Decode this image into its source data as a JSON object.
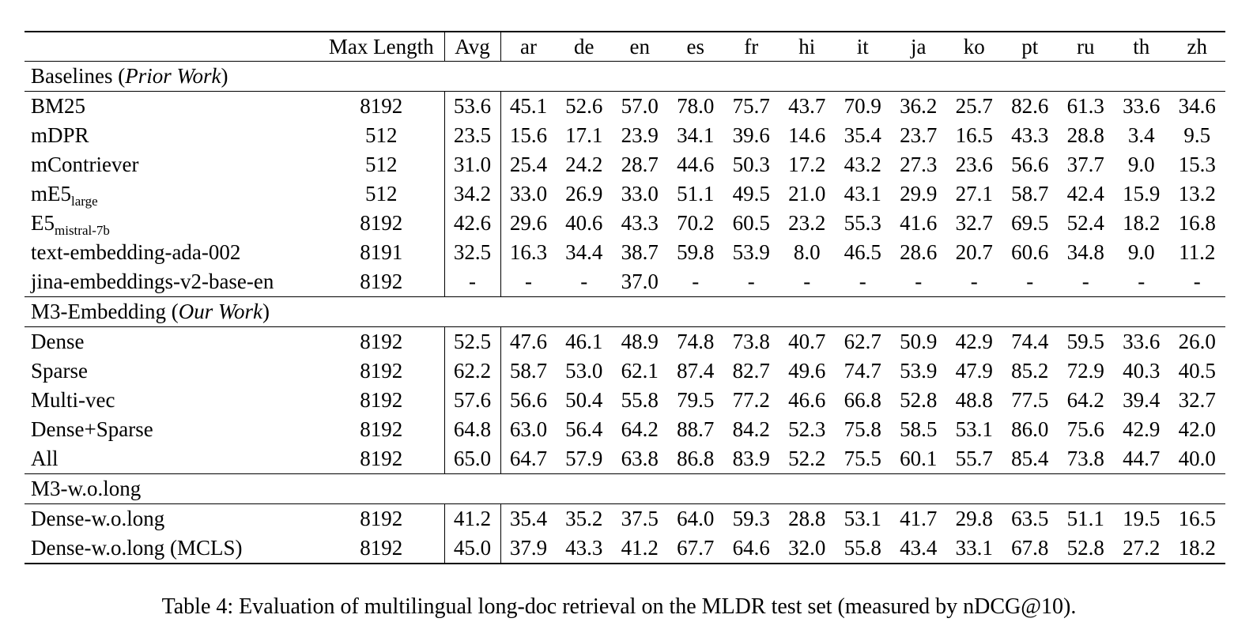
{
  "table": {
    "header": {
      "name": "",
      "max_length": "Max Length",
      "avg": "Avg",
      "langs": [
        "ar",
        "de",
        "en",
        "es",
        "fr",
        "hi",
        "it",
        "ja",
        "ko",
        "pt",
        "ru",
        "th",
        "zh"
      ]
    },
    "sections": [
      {
        "title": "Baselines (",
        "title_italic": "Prior Work",
        "title_end": ")",
        "rows": [
          {
            "name": "BM25",
            "sub": "",
            "max_length": "8192",
            "avg": "53.6",
            "values": [
              "45.1",
              "52.6",
              "57.0",
              "78.0",
              "75.7",
              "43.7",
              "70.9",
              "36.2",
              "25.7",
              "82.6",
              "61.3",
              "33.6",
              "34.6"
            ],
            "bold": []
          },
          {
            "name": "mDPR",
            "sub": "",
            "max_length": "512",
            "avg": "23.5",
            "values": [
              "15.6",
              "17.1",
              "23.9",
              "34.1",
              "39.6",
              "14.6",
              "35.4",
              "23.7",
              "16.5",
              "43.3",
              "28.8",
              "3.4",
              "9.5"
            ],
            "bold": []
          },
          {
            "name": "mContriever",
            "sub": "",
            "max_length": "512",
            "avg": "31.0",
            "values": [
              "25.4",
              "24.2",
              "28.7",
              "44.6",
              "50.3",
              "17.2",
              "43.2",
              "27.3",
              "23.6",
              "56.6",
              "37.7",
              "9.0",
              "15.3"
            ],
            "bold": []
          },
          {
            "name": "mE5",
            "sub": "large",
            "max_length": "512",
            "avg": "34.2",
            "values": [
              "33.0",
              "26.9",
              "33.0",
              "51.1",
              "49.5",
              "21.0",
              "43.1",
              "29.9",
              "27.1",
              "58.7",
              "42.4",
              "15.9",
              "13.2"
            ],
            "bold": []
          },
          {
            "name": "E5",
            "sub": "mistral-7b",
            "max_length": "8192",
            "avg": "42.6",
            "values": [
              "29.6",
              "40.6",
              "43.3",
              "70.2",
              "60.5",
              "23.2",
              "55.3",
              "41.6",
              "32.7",
              "69.5",
              "52.4",
              "18.2",
              "16.8"
            ],
            "bold": []
          },
          {
            "name": "text-embedding-ada-002",
            "sub": "",
            "max_length": "8191",
            "avg": "32.5",
            "values": [
              "16.3",
              "34.4",
              "38.7",
              "59.8",
              "53.9",
              "8.0",
              "46.5",
              "28.6",
              "20.7",
              "60.6",
              "34.8",
              "9.0",
              "11.2"
            ],
            "bold": []
          },
          {
            "name": "jina-embeddings-v2-base-en",
            "sub": "",
            "max_length": "8192",
            "avg": "-",
            "values": [
              "-",
              "-",
              "37.0",
              "-",
              "-",
              "-",
              "-",
              "-",
              "-",
              "-",
              "-",
              "-",
              "-"
            ],
            "bold": []
          }
        ]
      },
      {
        "title": "M3-Embedding (",
        "title_italic": "Our Work",
        "title_end": ")",
        "rows": [
          {
            "name": "Dense",
            "sub": "",
            "max_length": "8192",
            "avg": "52.5",
            "values": [
              "47.6",
              "46.1",
              "48.9",
              "74.8",
              "73.8",
              "40.7",
              "62.7",
              "50.9",
              "42.9",
              "74.4",
              "59.5",
              "33.6",
              "26.0"
            ],
            "bold": []
          },
          {
            "name": "Sparse",
            "sub": "",
            "max_length": "8192",
            "avg": "62.2",
            "values": [
              "58.7",
              "53.0",
              "62.1",
              "87.4",
              "82.7",
              "49.6",
              "74.7",
              "53.9",
              "47.9",
              "85.2",
              "72.9",
              "40.3",
              "40.5"
            ],
            "bold": []
          },
          {
            "name": "Multi-vec",
            "sub": "",
            "max_length": "8192",
            "avg": "57.6",
            "values": [
              "56.6",
              "50.4",
              "55.8",
              "79.5",
              "77.2",
              "46.6",
              "66.8",
              "52.8",
              "48.8",
              "77.5",
              "64.2",
              "39.4",
              "32.7"
            ],
            "bold": []
          },
          {
            "name": "Dense+Sparse",
            "sub": "",
            "max_length": "8192",
            "avg": "64.8",
            "values": [
              "63.0",
              "56.4",
              "64.2",
              "88.7",
              "84.2",
              "52.3",
              "75.8",
              "58.5",
              "53.1",
              "86.0",
              "75.6",
              "42.9",
              "42.0"
            ],
            "bold": [
              "en",
              "es",
              "fr",
              "hi",
              "it",
              "pt",
              "ru",
              "zh"
            ]
          },
          {
            "name": "All",
            "sub": "",
            "max_length": "8192",
            "avg": "65.0",
            "values": [
              "64.7",
              "57.9",
              "63.8",
              "86.8",
              "83.9",
              "52.2",
              "75.5",
              "60.1",
              "55.7",
              "85.4",
              "73.8",
              "44.7",
              "40.0"
            ],
            "bold": [
              "avg",
              "ar",
              "de",
              "ja",
              "ko",
              "th"
            ]
          }
        ]
      },
      {
        "title": "M3-w.o.long",
        "title_italic": "",
        "title_end": "",
        "rows": [
          {
            "name": "Dense-w.o.long",
            "sub": "",
            "max_length": "8192",
            "avg": "41.2",
            "values": [
              "35.4",
              "35.2",
              "37.5",
              "64.0",
              "59.3",
              "28.8",
              "53.1",
              "41.7",
              "29.8",
              "63.5",
              "51.1",
              "19.5",
              "16.5"
            ],
            "bold": []
          },
          {
            "name": "Dense-w.o.long (MCLS)",
            "sub": "",
            "max_length": "8192",
            "avg": "45.0",
            "values": [
              "37.9",
              "43.3",
              "41.2",
              "67.7",
              "64.6",
              "32.0",
              "55.8",
              "43.4",
              "33.1",
              "67.8",
              "52.8",
              "27.2",
              "18.2"
            ],
            "bold": []
          }
        ]
      }
    ]
  },
  "caption": "Table 4: Evaluation of multilingual long-doc retrieval on the MLDR test set (measured by nDCG@10)."
}
